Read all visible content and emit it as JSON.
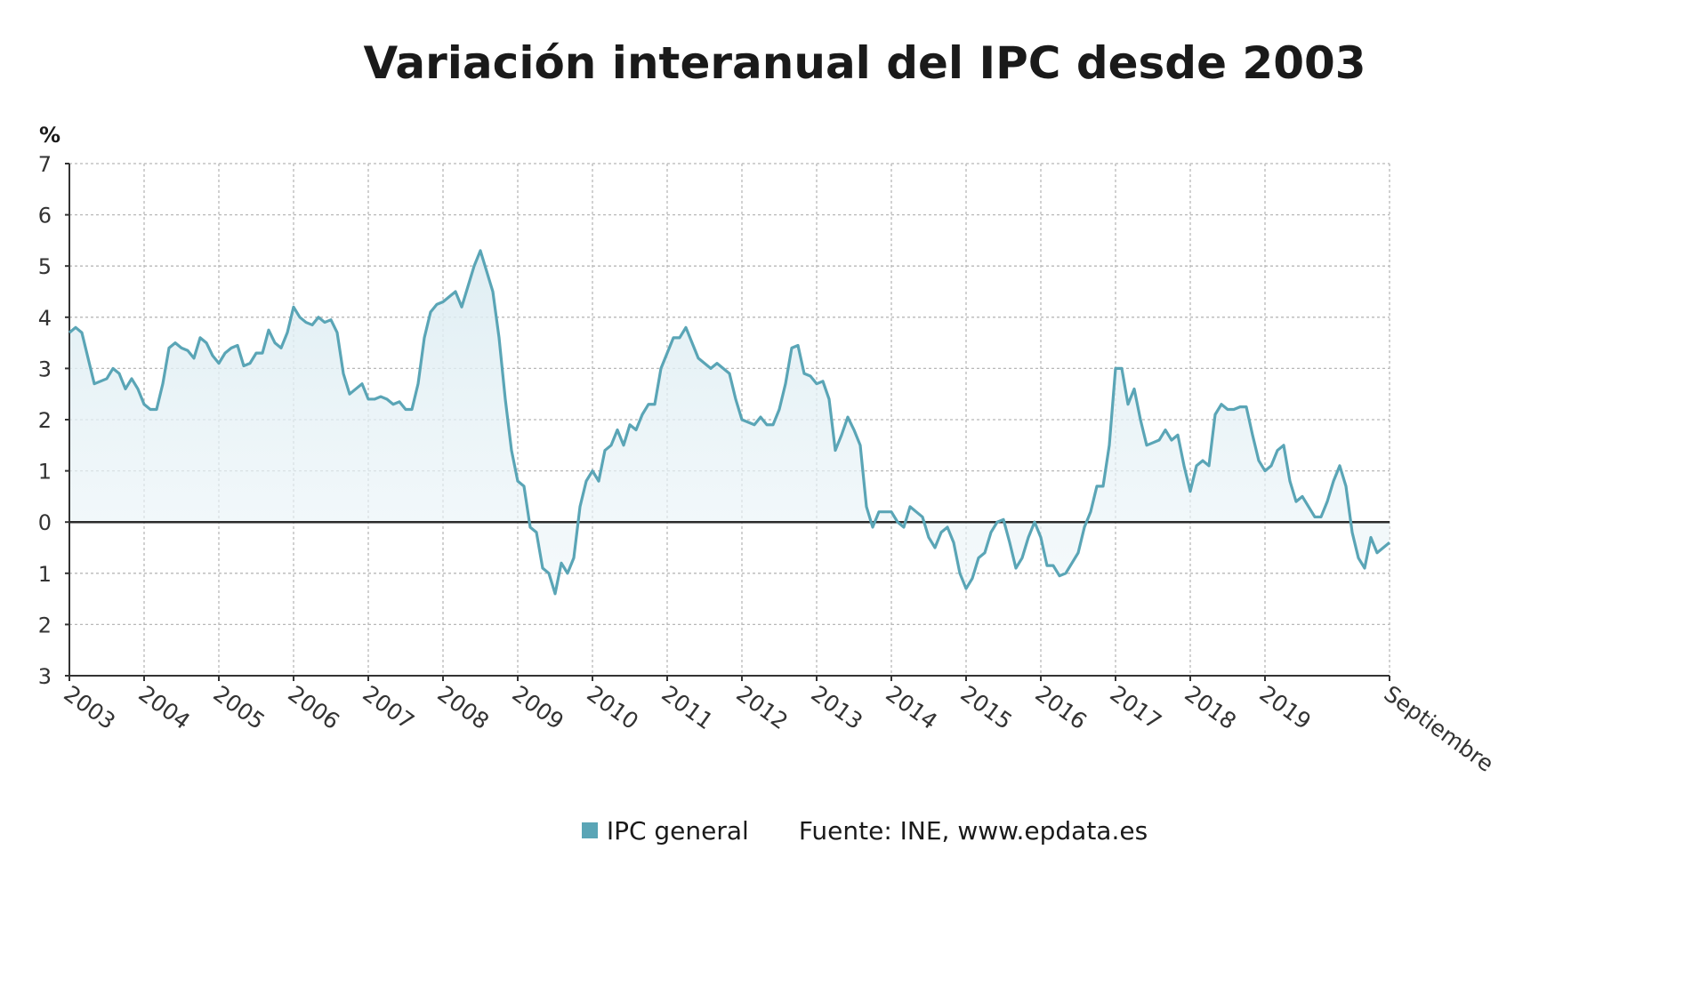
{
  "chart_data": {
    "type": "area",
    "title": "Variación interanual del IPC desde 2003",
    "ylabel": "%",
    "ylim": [
      -3,
      7
    ],
    "yticks": [
      7,
      6,
      5,
      4,
      3,
      2,
      1,
      0,
      -1,
      -2,
      -3
    ],
    "ytick_labels": [
      "7",
      "6",
      "5",
      "4",
      "3",
      "2",
      "1",
      "0",
      "1",
      "2",
      "3"
    ],
    "xticks": [
      "2003",
      "2004",
      "2005",
      "2006",
      "2007",
      "2008",
      "2009",
      "2010",
      "2011",
      "2012",
      "2013",
      "2014",
      "2015",
      "2016",
      "2017",
      "2018",
      "2019",
      "Septiembre"
    ],
    "grid": true,
    "series": [
      {
        "name": "IPC general",
        "color": "#5aa5b6",
        "values": [
          3.7,
          3.8,
          3.7,
          3.2,
          2.7,
          2.75,
          2.8,
          3.0,
          2.9,
          2.6,
          2.8,
          2.6,
          2.3,
          2.2,
          2.2,
          2.7,
          3.4,
          3.5,
          3.4,
          3.35,
          3.2,
          3.6,
          3.5,
          3.25,
          3.1,
          3.3,
          3.4,
          3.45,
          3.05,
          3.1,
          3.3,
          3.3,
          3.75,
          3.5,
          3.4,
          3.7,
          4.2,
          4.0,
          3.9,
          3.85,
          4.0,
          3.9,
          3.95,
          3.7,
          2.9,
          2.5,
          2.6,
          2.7,
          2.4,
          2.4,
          2.45,
          2.4,
          2.3,
          2.35,
          2.2,
          2.2,
          2.7,
          3.6,
          4.1,
          4.25,
          4.3,
          4.4,
          4.5,
          4.2,
          4.6,
          5.0,
          5.3,
          4.9,
          4.5,
          3.6,
          2.4,
          1.4,
          0.8,
          0.7,
          -0.1,
          -0.2,
          -0.9,
          -1.0,
          -1.4,
          -0.8,
          -1.0,
          -0.7,
          0.3,
          0.8,
          1.0,
          0.8,
          1.4,
          1.5,
          1.8,
          1.5,
          1.9,
          1.8,
          2.1,
          2.3,
          2.3,
          3.0,
          3.3,
          3.6,
          3.6,
          3.8,
          3.5,
          3.2,
          3.1,
          3.0,
          3.1,
          3.0,
          2.9,
          2.4,
          2.0,
          1.95,
          1.9,
          2.05,
          1.9,
          1.9,
          2.2,
          2.7,
          3.4,
          3.45,
          2.9,
          2.85,
          2.7,
          2.75,
          2.4,
          1.4,
          1.7,
          2.05,
          1.8,
          1.5,
          0.3,
          -0.1,
          0.2,
          0.2,
          0.2,
          0.0,
          -0.1,
          0.3,
          0.2,
          0.1,
          -0.3,
          -0.5,
          -0.2,
          -0.1,
          -0.4,
          -1.0,
          -1.3,
          -1.1,
          -0.7,
          -0.6,
          -0.2,
          0.0,
          0.05,
          -0.4,
          -0.9,
          -0.7,
          -0.3,
          0.0,
          -0.3,
          -0.85,
          -0.85,
          -1.05,
          -1.0,
          -0.8,
          -0.6,
          -0.1,
          0.2,
          0.7,
          0.7,
          1.5,
          3.0,
          3.0,
          2.3,
          2.6,
          2.0,
          1.5,
          1.55,
          1.6,
          1.8,
          1.6,
          1.7,
          1.1,
          0.6,
          1.1,
          1.2,
          1.1,
          2.1,
          2.3,
          2.2,
          2.2,
          2.25,
          2.25,
          1.7,
          1.2,
          1.0,
          1.1,
          1.4,
          1.5,
          0.8,
          0.4,
          0.5,
          0.3,
          0.1,
          0.1,
          0.4,
          0.8,
          1.1,
          0.7,
          -0.2,
          -0.7,
          -0.9,
          -0.3,
          -0.6,
          -0.5,
          -0.4
        ]
      }
    ]
  },
  "legend": {
    "series_label": "IPC general",
    "source": "Fuente: INE, www.epdata.es"
  }
}
